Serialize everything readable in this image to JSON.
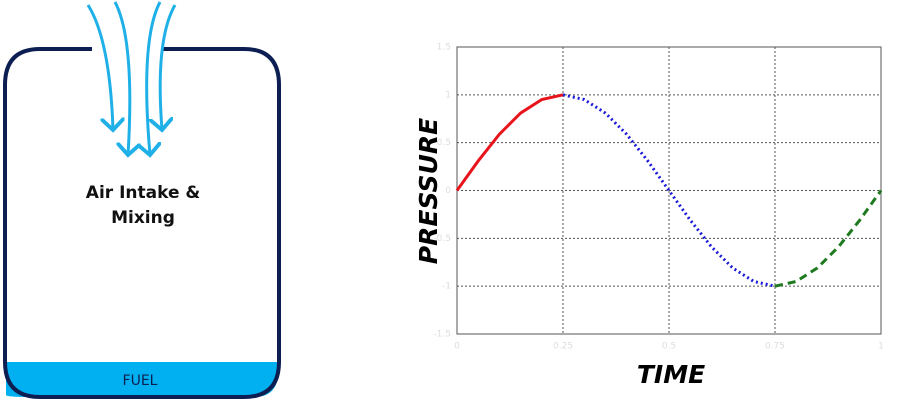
{
  "diagram": {
    "label_line1": "Air Intake &",
    "label_line2": "Mixing",
    "fuel_label": "FUEL"
  },
  "chart_data": {
    "type": "line",
    "xlabel": "TIME",
    "ylabel": "PRESSURE",
    "xlim": [
      0,
      1
    ],
    "xticks": [
      0,
      0.25,
      0.5,
      0.75,
      1
    ],
    "ylim": [
      -1.5,
      1.5
    ],
    "yticks": [
      -1.5,
      -1,
      -0.5,
      0,
      0.5,
      1,
      1.5
    ],
    "grid": true,
    "series": [
      {
        "color": "#e8141c",
        "style": "solid",
        "x": [
          0,
          0.05,
          0.1,
          0.15,
          0.2,
          0.25
        ],
        "values": [
          0,
          0.309,
          0.588,
          0.809,
          0.951,
          1
        ]
      },
      {
        "color": "#1a1adb",
        "style": "dotted",
        "x": [
          0.25,
          0.3,
          0.35,
          0.4,
          0.45,
          0.5,
          0.55,
          0.6,
          0.65,
          0.7,
          0.75
        ],
        "values": [
          1,
          0.951,
          0.809,
          0.588,
          0.309,
          0,
          -0.309,
          -0.588,
          -0.809,
          -0.951,
          -1
        ]
      },
      {
        "color": "#1e7a1e",
        "style": "dashed",
        "x": [
          0.75,
          0.8,
          0.85,
          0.9,
          0.95,
          1
        ],
        "values": [
          -1,
          -0.951,
          -0.809,
          -0.588,
          -0.309,
          0
        ]
      }
    ]
  }
}
